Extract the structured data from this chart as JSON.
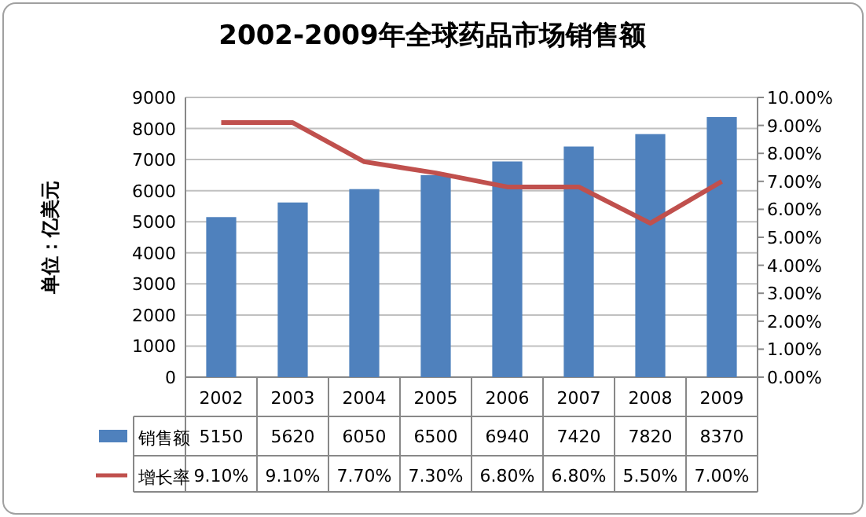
{
  "chart_data": {
    "type": "bar",
    "title": "2002-2009年全球药品市场销售额",
    "ylabel": "单位：亿美元",
    "categories": [
      "2002",
      "2003",
      "2004",
      "2005",
      "2006",
      "2007",
      "2008",
      "2009"
    ],
    "series": [
      {
        "name": "销售额",
        "color": "#4f81bd",
        "values": [
          5150,
          5620,
          6050,
          6500,
          6940,
          7420,
          7820,
          8370
        ],
        "value_labels": [
          "5150",
          "5620",
          "6050",
          "6500",
          "6940",
          "7420",
          "7820",
          "8370"
        ]
      },
      {
        "name": "增长率",
        "type": "line",
        "axis": "y2",
        "color": "#c0504d",
        "values": [
          9.1,
          9.1,
          7.7,
          7.3,
          6.8,
          6.8,
          5.5,
          7.0
        ],
        "value_labels": [
          "9.10%",
          "9.10%",
          "7.70%",
          "7.30%",
          "6.80%",
          "6.80%",
          "5.50%",
          "7.00%"
        ]
      }
    ],
    "ylim": [
      0,
      9000
    ],
    "yticks": [
      0,
      1000,
      2000,
      3000,
      4000,
      5000,
      6000,
      7000,
      8000,
      9000
    ],
    "y2lim": [
      0,
      10
    ],
    "y2ticks": [
      {
        "value": 0,
        "label": "0.00%"
      },
      {
        "value": 1,
        "label": "1.00%"
      },
      {
        "value": 2,
        "label": "2.00%"
      },
      {
        "value": 3,
        "label": "3.00%"
      },
      {
        "value": 4,
        "label": "4.00%"
      },
      {
        "value": 5,
        "label": "5.00%"
      },
      {
        "value": 6,
        "label": "6.00%"
      },
      {
        "value": 7,
        "label": "7.00%"
      },
      {
        "value": 8,
        "label": "8.00%"
      },
      {
        "value": 9,
        "label": "9.00%"
      },
      {
        "value": 10,
        "label": "10.00%"
      }
    ],
    "grid": "y",
    "legend": "bottom"
  }
}
